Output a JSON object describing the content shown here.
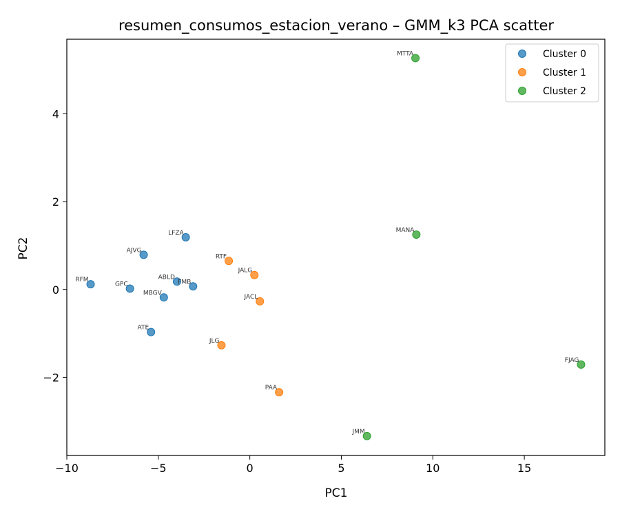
{
  "chart_data": {
    "type": "scatter",
    "title": "resumen_consumos_estacion_verano – GMM_k3 PCA scatter",
    "xlabel": "PC1",
    "ylabel": "PC2",
    "xlim": [
      -10,
      19.4
    ],
    "ylim": [
      -3.78,
      5.7
    ],
    "xticks": [
      -10,
      -5,
      0,
      5,
      10,
      15
    ],
    "yticks": [
      -2,
      0,
      2,
      4
    ],
    "grid": false,
    "legend_position": "top-right",
    "series": [
      {
        "name": "Cluster 0",
        "color": "#1f77b4",
        "points": [
          {
            "label": "RFM",
            "x": -8.7,
            "y": 0.12
          },
          {
            "label": "GPC",
            "x": -6.55,
            "y": 0.02
          },
          {
            "label": "AJVG",
            "x": -5.8,
            "y": 0.79
          },
          {
            "label": "ATE",
            "x": -5.4,
            "y": -0.97
          },
          {
            "label": "MBGV",
            "x": -4.7,
            "y": -0.18
          },
          {
            "label": "ABLD",
            "x": -3.98,
            "y": 0.18
          },
          {
            "label": "LFZA",
            "x": -3.5,
            "y": 1.19
          },
          {
            "label": "FMB",
            "x": -3.1,
            "y": 0.07
          }
        ]
      },
      {
        "name": "Cluster 1",
        "color": "#ff7f0e",
        "points": [
          {
            "label": "RTF",
            "x": -1.15,
            "y": 0.65
          },
          {
            "label": "JLG",
            "x": -1.55,
            "y": -1.27
          },
          {
            "label": "JALG",
            "x": 0.25,
            "y": 0.33
          },
          {
            "label": "JACL",
            "x": 0.55,
            "y": -0.27
          },
          {
            "label": "PAA",
            "x": 1.6,
            "y": -2.34
          }
        ]
      },
      {
        "name": "Cluster 2",
        "color": "#2ca02c",
        "points": [
          {
            "label": "MTTA",
            "x": 9.05,
            "y": 5.27
          },
          {
            "label": "MANA",
            "x": 9.1,
            "y": 1.25
          },
          {
            "label": "JMM",
            "x": 6.4,
            "y": -3.34
          },
          {
            "label": "FJAG",
            "x": 18.1,
            "y": -1.71
          }
        ]
      }
    ]
  }
}
